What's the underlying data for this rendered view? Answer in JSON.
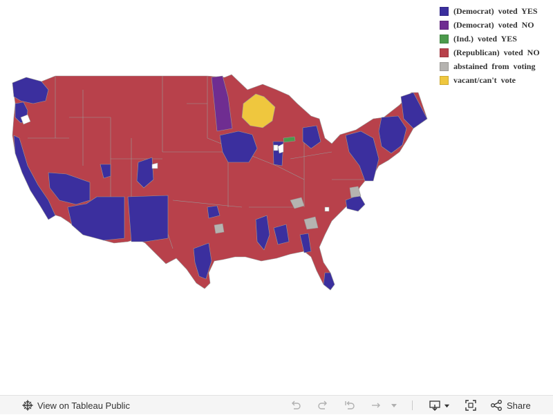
{
  "legend": {
    "items": [
      {
        "label": "(Democrat) voted YES",
        "color": "#3b2f9e"
      },
      {
        "label": "(Democrat) voted NO",
        "color": "#6f2d91"
      },
      {
        "label": "(Ind.) voted YES",
        "color": "#4c9a4c"
      },
      {
        "label": "(Republican) voted NO",
        "color": "#b8414b"
      },
      {
        "label": "abstained from voting",
        "color": "#b5b3b0"
      },
      {
        "label": "vacant/can't vote",
        "color": "#efc73e"
      }
    ]
  },
  "map": {
    "region": "contiguous-us-congressional-districts",
    "background_color": "#ffffff",
    "border_color": "#9a9a9a"
  },
  "toolbar": {
    "view_label": "View on Tableau Public",
    "share_label": "Share",
    "icons": [
      "tableau-logo-icon",
      "undo-icon",
      "redo-icon",
      "revert-icon",
      "refresh-icon",
      "pause-icon",
      "download-icon",
      "fullscreen-icon",
      "share-icon"
    ]
  }
}
